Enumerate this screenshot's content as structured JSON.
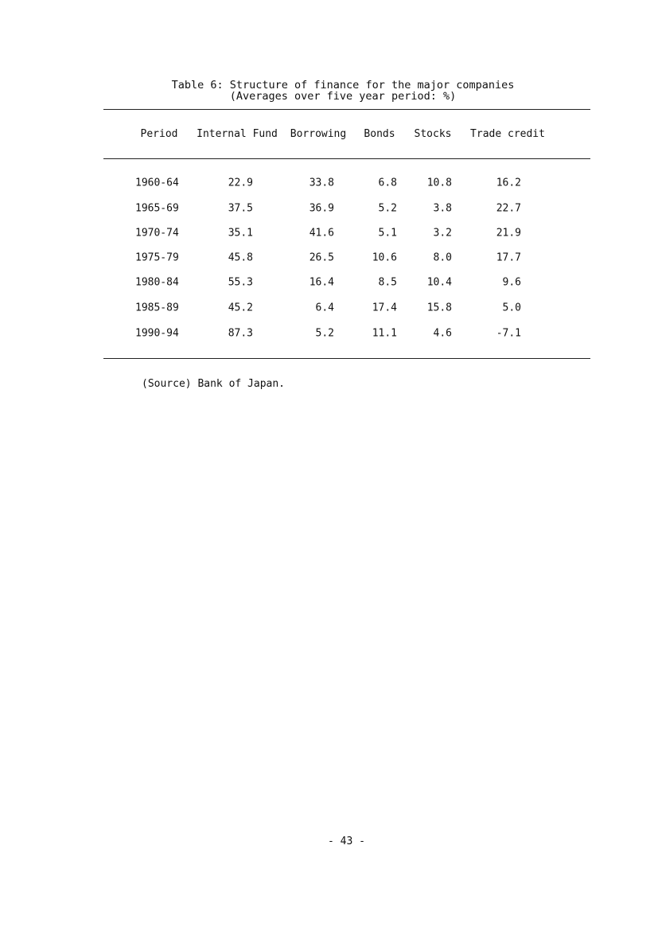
{
  "table": {
    "title": "Table 6: Structure of finance for the major companies",
    "subtitle": "(Averages over five year period: %)",
    "columns": [
      "Period",
      "Internal Fund",
      "Borrowing",
      "Bonds",
      "Stocks",
      "Trade credit"
    ],
    "rows": [
      [
        "1960-64",
        "22.9",
        "33.8",
        "6.8",
        "10.8",
        "16.2"
      ],
      [
        "1965-69",
        "37.5",
        "36.9",
        "5.2",
        "3.8",
        "22.7"
      ],
      [
        "1970-74",
        "35.1",
        "41.6",
        "5.1",
        "3.2",
        "21.9"
      ],
      [
        "1975-79",
        "45.8",
        "26.5",
        "10.6",
        "8.0",
        "17.7"
      ],
      [
        "1980-84",
        "55.3",
        "16.4",
        "8.5",
        "10.4",
        "9.6"
      ],
      [
        "1985-89",
        "45.2",
        "6.4",
        "17.4",
        "15.8",
        "5.0"
      ],
      [
        "1990-94",
        "87.3",
        "5.2",
        "11.1",
        "4.6",
        "-7.1"
      ]
    ],
    "source": "(Source) Bank of Japan."
  },
  "page_number": "- 43 -"
}
